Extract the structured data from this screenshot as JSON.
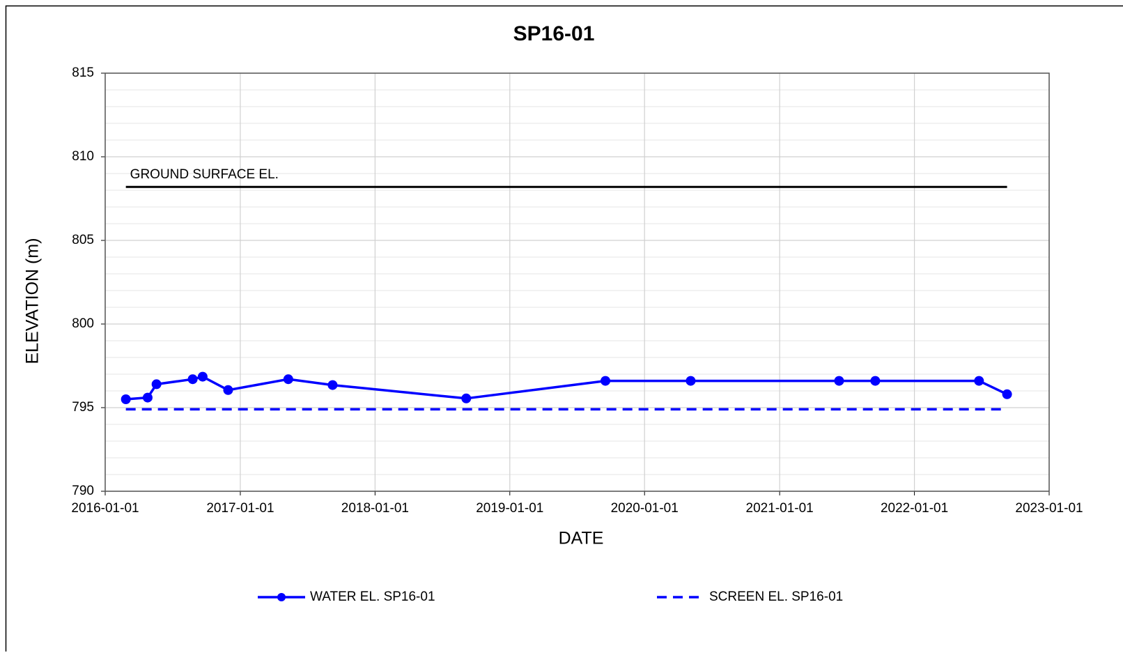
{
  "chart_data": {
    "type": "line",
    "title": "SP16-01",
    "xlabel": "DATE",
    "ylabel": "ELEVATION (m)",
    "xlim": [
      "2016-01-01",
      "2023-01-01"
    ],
    "xticks": [
      "2016-01-01",
      "2017-01-01",
      "2018-01-01",
      "2019-01-01",
      "2020-01-01",
      "2021-01-01",
      "2022-01-01",
      "2023-01-01"
    ],
    "ylim": [
      790,
      815
    ],
    "yticks": [
      790,
      795,
      800,
      805,
      810,
      815
    ],
    "y_minor_ticks": [
      791,
      792,
      793,
      794,
      796,
      797,
      798,
      799,
      801,
      802,
      803,
      804,
      806,
      807,
      808,
      809,
      811,
      812,
      813,
      814
    ],
    "grid": true,
    "legend": "bottom",
    "series": [
      {
        "name": "WATER EL. SP16-01",
        "color": "#0000ff",
        "style": "solid",
        "markers": true,
        "x": [
          "2016-02-26",
          "2016-04-25",
          "2016-05-19",
          "2016-08-25",
          "2016-09-21",
          "2016-11-29",
          "2017-05-11",
          "2017-09-08",
          "2018-09-05",
          "2019-09-17",
          "2020-05-05",
          "2021-06-11",
          "2021-09-17",
          "2022-06-25",
          "2022-09-09"
        ],
        "values": [
          795.5,
          795.6,
          796.4,
          796.7,
          796.85,
          796.05,
          796.7,
          796.35,
          795.55,
          796.6,
          796.6,
          796.6,
          796.6,
          796.6,
          795.8
        ]
      },
      {
        "name": "SCREEN EL. SP16-01",
        "color": "#0000ff",
        "style": "dashed",
        "markers": false,
        "x": [
          "2016-02-26",
          "2022-09-09"
        ],
        "values": [
          794.9,
          794.9
        ]
      }
    ],
    "annotations": [
      {
        "text": "GROUND SURFACE EL.",
        "color": "#000000",
        "x": [
          "2016-02-26",
          "2022-09-09"
        ],
        "values": [
          808.2,
          808.2
        ]
      }
    ]
  }
}
